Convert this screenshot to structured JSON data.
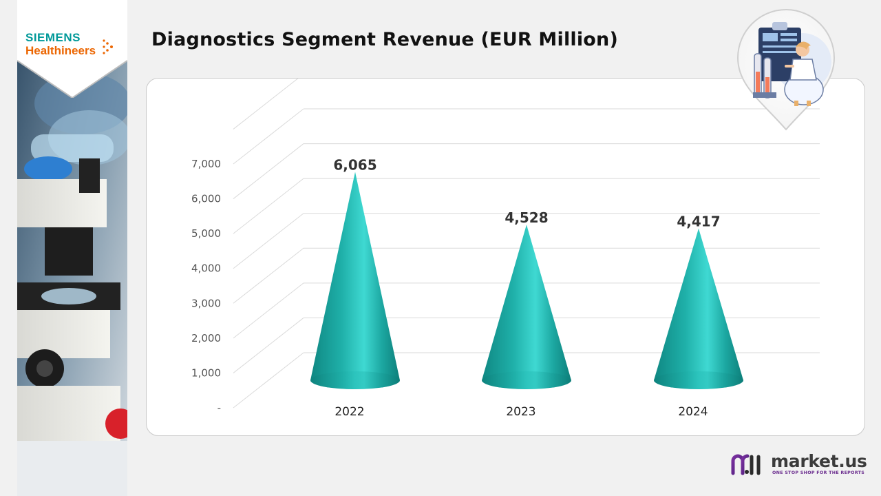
{
  "logo": {
    "line1": "SIEMENS",
    "line2": "Healthineers"
  },
  "title": "Diagnostics Segment Revenue (EUR Million)",
  "brand": {
    "name": "market.us",
    "tagline": "ONE STOP SHOP FOR THE REPORTS"
  },
  "icons": {
    "logo_dots": "healthineers-dots-icon",
    "pin": "lab-scientist-illustration",
    "brand": "market-us-logo-icon"
  },
  "colors": {
    "cone": "#1aa6a0",
    "cone_highlight": "#3ed6d0",
    "accent_orange": "#ec6602",
    "accent_teal": "#009999",
    "brand_purple": "#6a2c8e"
  },
  "chart_data": {
    "type": "bar",
    "style": "3d-cone",
    "categories": [
      "2022",
      "2023",
      "2024"
    ],
    "values": [
      6065,
      4528,
      4417
    ],
    "value_labels": [
      "6,065",
      "4,528",
      "4,417"
    ],
    "ylim": [
      0,
      7000
    ],
    "yticks": [
      0,
      1000,
      2000,
      3000,
      4000,
      5000,
      6000,
      7000
    ],
    "ytick_labels": [
      "-",
      "1,000",
      "2,000",
      "3,000",
      "4,000",
      "5,000",
      "6,000",
      "7,000"
    ],
    "title": "Diagnostics Segment Revenue (EUR Million)",
    "xlabel": "",
    "ylabel": "",
    "grid": true,
    "legend": "none"
  }
}
